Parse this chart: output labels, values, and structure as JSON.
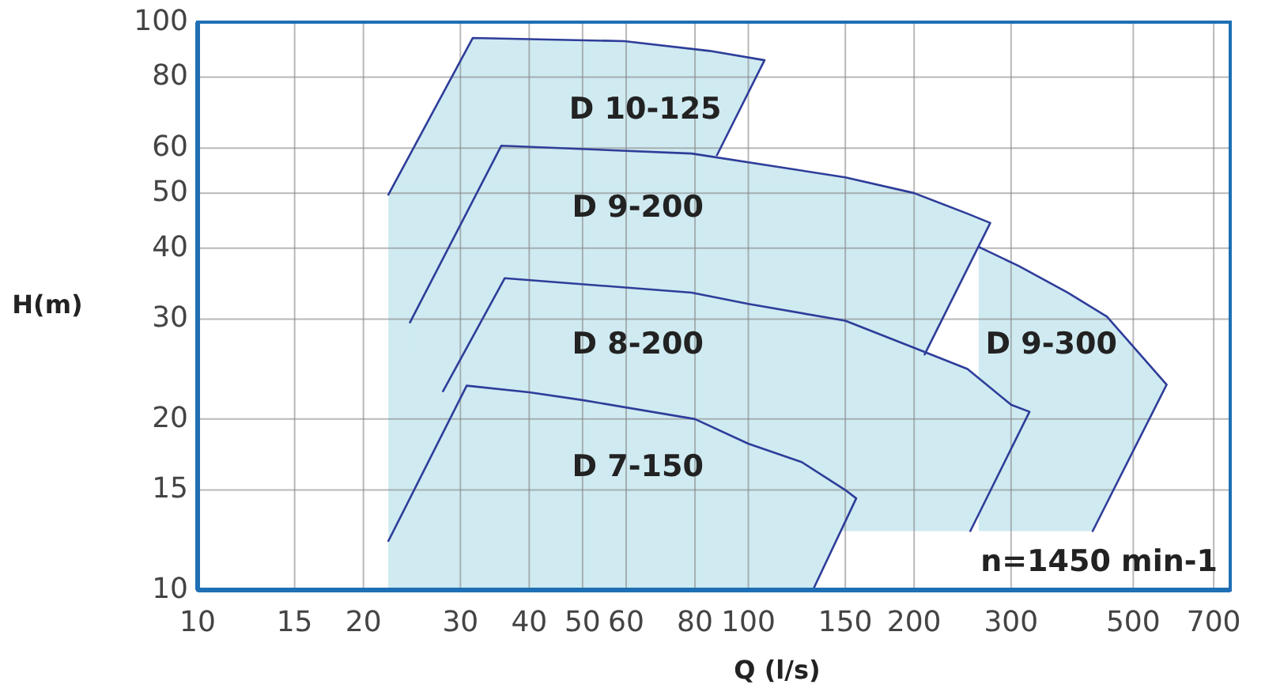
{
  "chart_data": {
    "type": "line",
    "xlabel": "Q (l/s)",
    "ylabel": "H(m)",
    "log": "xy",
    "grid": true,
    "legend": false,
    "marker": "none",
    "line_style": "solid",
    "xlim": [
      10,
      750
    ],
    "xticks": [
      10,
      15,
      20,
      30,
      40,
      50,
      60,
      80,
      100,
      150,
      200,
      300,
      500,
      700
    ],
    "ylim": [
      10,
      100
    ],
    "yticks": [
      10,
      15,
      20,
      30,
      40,
      50,
      60,
      80,
      100
    ],
    "annotations": [
      "n=1450 min-1"
    ],
    "series": [
      {
        "name": "D 10-125",
        "color": "#2e3d99",
        "x": [
          22.2,
          31.6,
          59.5,
          85,
          107,
          87.7
        ],
        "values": [
          49.7,
          93.8,
          92.6,
          89,
          85.7,
          58.3
        ]
      },
      {
        "name": "D 9-300",
        "color": "#2e3d99",
        "x": [
          262,
          310,
          380,
          448,
          575,
          422
        ],
        "values": [
          40.2,
          37.2,
          33.4,
          30.3,
          23.0,
          12.7
        ]
      },
      {
        "name": "D 9-200",
        "color": "#2e3d99",
        "x": [
          24.3,
          35.6,
          78.9,
          150,
          200,
          250,
          275,
          209
        ],
        "values": [
          29.6,
          60.6,
          58.7,
          53.3,
          50.0,
          46,
          44.3,
          26.0
        ]
      },
      {
        "name": "D 8-200",
        "color": "#2e3d99",
        "x": [
          27.9,
          36.1,
          78.9,
          100,
          150,
          200,
          250,
          300,
          324,
          253
        ],
        "values": [
          22.4,
          35.4,
          33.4,
          31.9,
          29.8,
          26.7,
          24.5,
          21.2,
          20.6,
          12.7
        ]
      },
      {
        "name": "D 7-150",
        "color": "#2e3d99",
        "x": [
          22.2,
          30.8,
          40,
          50,
          80,
          100,
          125,
          150,
          157,
          131
        ],
        "values": [
          12.2,
          22.9,
          22.3,
          21.6,
          20,
          18.1,
          16.8,
          15.0,
          14.5,
          10
        ]
      }
    ]
  }
}
